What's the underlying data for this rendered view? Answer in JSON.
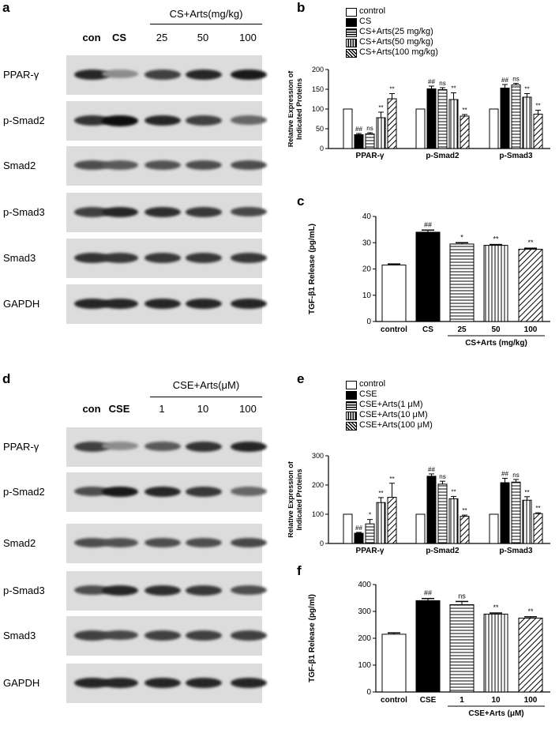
{
  "panel_letters": {
    "a": "a",
    "b": "b",
    "c": "c",
    "d": "d",
    "e": "e",
    "f": "f"
  },
  "blot_top": {
    "header": "CS+Arts(mg/kg)",
    "lanes": [
      "con",
      "CS",
      "25",
      "50",
      "100"
    ],
    "rows": [
      "PPAR-γ",
      "p-Smad2",
      "Smad2",
      "p-Smad3",
      "Smad3",
      "GAPDH"
    ],
    "intensity": [
      [
        0.85,
        0.45,
        0.75,
        0.85,
        0.9
      ],
      [
        0.8,
        0.95,
        0.85,
        0.75,
        0.6
      ],
      [
        0.7,
        0.65,
        0.68,
        0.7,
        0.7
      ],
      [
        0.75,
        0.85,
        0.82,
        0.78,
        0.72
      ],
      [
        0.8,
        0.78,
        0.78,
        0.78,
        0.78
      ],
      [
        0.85,
        0.85,
        0.85,
        0.85,
        0.85
      ]
    ]
  },
  "blot_bottom": {
    "header": "CSE+Arts(μM)",
    "lanes": [
      "con",
      "CSE",
      "1",
      "10",
      "100"
    ],
    "rows": [
      "PPAR-γ",
      "p-Smad2",
      "Smad2",
      "p-Smad3",
      "Smad3",
      "GAPDH"
    ],
    "intensity": [
      [
        0.75,
        0.45,
        0.65,
        0.8,
        0.85
      ],
      [
        0.7,
        0.9,
        0.85,
        0.78,
        0.6
      ],
      [
        0.7,
        0.68,
        0.7,
        0.7,
        0.72
      ],
      [
        0.7,
        0.85,
        0.82,
        0.78,
        0.7
      ],
      [
        0.75,
        0.72,
        0.75,
        0.75,
        0.75
      ],
      [
        0.85,
        0.85,
        0.85,
        0.85,
        0.85
      ]
    ]
  },
  "legend_b": [
    "control",
    "CS",
    "CS+Arts(25 mg/kg)",
    "CS+Arts(50 mg/kg)",
    "CS+Arts(100 mg/kg)"
  ],
  "legend_e": [
    "control",
    "CSE",
    "CSE+Arts(1 μM)",
    "CSE+Arts(10 μM)",
    "CSE+Arts(100 μM)"
  ],
  "chart_data": [
    {
      "id": "b",
      "type": "bar",
      "ylabel": "Relative Expression of Indicated Proteins",
      "ylabel_lines": [
        "Relative Expression of",
        "Indicated Proteins"
      ],
      "ylim": [
        0,
        200
      ],
      "yticks": [
        "0",
        "50",
        "100",
        "150",
        "200"
      ],
      "categories": [
        "PPAR-γ",
        "p-Smad2",
        "p-Smad3"
      ],
      "series": [
        {
          "name": "control",
          "values": [
            100,
            100,
            100
          ],
          "errors": [
            0,
            0,
            0
          ],
          "labels": [
            "",
            "",
            ""
          ]
        },
        {
          "name": "CS",
          "values": [
            35,
            151,
            153
          ],
          "errors": [
            3,
            7,
            9
          ],
          "labels": [
            "##",
            "##",
            "##"
          ]
        },
        {
          "name": "CS+Arts(25 mg/kg)",
          "values": [
            37,
            149,
            161
          ],
          "errors": [
            3,
            5,
            4
          ],
          "labels": [
            "ns",
            "ns",
            "ns"
          ]
        },
        {
          "name": "CS+Arts(50 mg/kg)",
          "values": [
            78,
            124,
            130
          ],
          "errors": [
            14,
            17,
            9
          ],
          "labels": [
            "**",
            "**",
            "**"
          ]
        },
        {
          "name": "CS+Arts(100 mg/kg)",
          "values": [
            126,
            82,
            87
          ],
          "errors": [
            13,
            4,
            10
          ],
          "labels": [
            "**",
            "**",
            "**"
          ]
        }
      ]
    },
    {
      "id": "c",
      "type": "bar",
      "ylabel": "TGF-β1 Release (pg/mL)",
      "ylim": [
        0,
        40
      ],
      "yticks": [
        "0",
        "10",
        "20",
        "30",
        "40"
      ],
      "categories": [
        "control",
        "CS",
        "25",
        "50",
        "100"
      ],
      "group_label": "CS+Arts (mg/kg)",
      "values": [
        21.5,
        34,
        29.5,
        29,
        27.5
      ],
      "errors": [
        0.4,
        0.8,
        0.5,
        0.3,
        0.4
      ],
      "labels": [
        "",
        "##",
        "*",
        "**",
        "**"
      ]
    },
    {
      "id": "e",
      "type": "bar",
      "ylabel": "Relative Expression of Indicated Proteins",
      "ylabel_lines": [
        "Relative Expression of",
        "Indicated Proteins"
      ],
      "ylim": [
        0,
        300
      ],
      "yticks": [
        "0",
        "100",
        "200",
        "300"
      ],
      "categories": [
        "PPAR-γ",
        "p-Smad2",
        "p-Smad3"
      ],
      "series": [
        {
          "name": "control",
          "values": [
            100,
            100,
            100
          ],
          "errors": [
            0,
            0,
            0
          ],
          "labels": [
            "",
            "",
            ""
          ]
        },
        {
          "name": "CSE",
          "values": [
            35,
            230,
            208
          ],
          "errors": [
            3,
            8,
            15
          ],
          "labels": [
            "##",
            "##",
            "##"
          ]
        },
        {
          "name": "CSE+Arts(1 μM)",
          "values": [
            67,
            203,
            210
          ],
          "errors": [
            15,
            10,
            9
          ],
          "labels": [
            "*",
            "ns",
            "ns"
          ]
        },
        {
          "name": "CSE+Arts(10 μM)",
          "values": [
            140,
            153,
            148
          ],
          "errors": [
            17,
            8,
            12
          ],
          "labels": [
            "**",
            "**",
            "**"
          ]
        },
        {
          "name": "CSE+Arts(100 μM)",
          "values": [
            158,
            93,
            102
          ],
          "errors": [
            48,
            4,
            3
          ],
          "labels": [
            "**",
            "**",
            "**"
          ]
        }
      ]
    },
    {
      "id": "f",
      "type": "bar",
      "ylabel": "TGF-β1 Release (pg/ml)",
      "ylim": [
        0,
        400
      ],
      "yticks": [
        "0",
        "100",
        "200",
        "300",
        "400"
      ],
      "categories": [
        "control",
        "CSE",
        "1",
        "10",
        "100"
      ],
      "group_label": "CSE+Arts (μM)",
      "values": [
        215,
        340,
        325,
        290,
        275
      ],
      "errors": [
        5,
        8,
        12,
        4,
        5
      ],
      "labels": [
        "",
        "##",
        "ns",
        "**",
        "**"
      ]
    }
  ]
}
